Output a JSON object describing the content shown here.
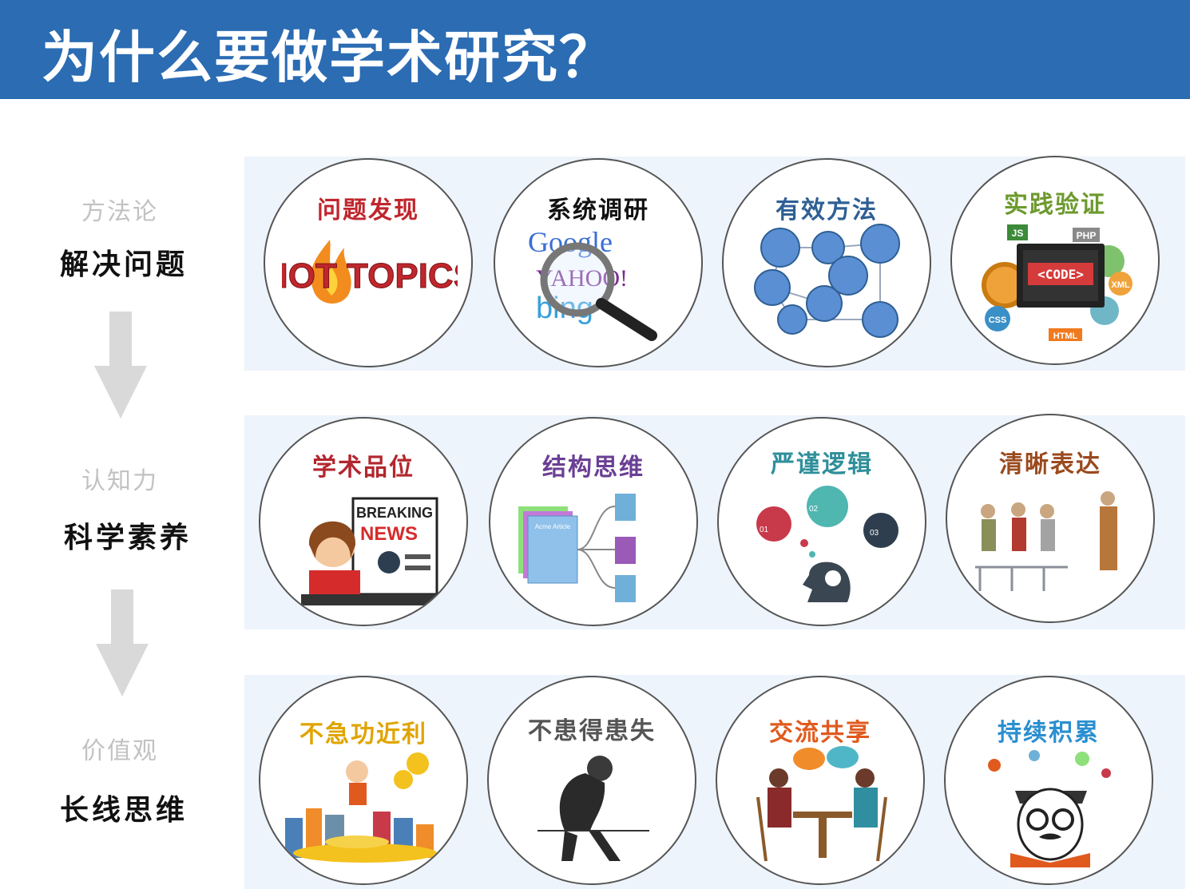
{
  "header": {
    "title": "为什么要做学术研究？"
  },
  "rows": [
    {
      "category": "方法论",
      "label": "解决问题",
      "items": [
        {
          "title": "问题发现",
          "icon": "hot-topics-icon",
          "color": "#c0262d",
          "art_text": "HOT TOPICS"
        },
        {
          "title": "系统调研",
          "icon": "search-engines-icon",
          "color": "#111111",
          "art_google": "Google",
          "art_yahoo": "YAHOO!",
          "art_bing": "bing"
        },
        {
          "title": "有效方法",
          "icon": "network-diagram-icon",
          "color": "#2f5f94"
        },
        {
          "title": "实践验证",
          "icon": "code-monitor-icon",
          "color": "#6d9a2e",
          "art_code": "<CODE>",
          "art_js": "JS",
          "art_php": "PHP",
          "art_xml": "XML",
          "art_css": "CSS",
          "art_html": "HTML"
        }
      ]
    },
    {
      "category": "认知力",
      "label": "科学素养",
      "items": [
        {
          "title": "学术品位",
          "icon": "breaking-news-icon",
          "color": "#b3262e",
          "art_breaking": "BREAKING",
          "art_news": "NEWS"
        },
        {
          "title": "结构思维",
          "icon": "mind-map-icon",
          "color": "#6a3f94",
          "art_article": "Acme Article"
        },
        {
          "title": "严谨逻辑",
          "icon": "brain-logic-icon",
          "color": "#2e8f9a",
          "art_01": "01",
          "art_02": "02",
          "art_03": "03"
        },
        {
          "title": "清晰表达",
          "icon": "presentation-icon",
          "color": "#9a4a1e"
        }
      ]
    },
    {
      "category": "价值观",
      "label": "长线思维",
      "items": [
        {
          "title": "不急功近利",
          "icon": "money-city-icon",
          "color": "#e0a400"
        },
        {
          "title": "不患得患失",
          "icon": "thinking-man-icon",
          "color": "#555555"
        },
        {
          "title": "交流共享",
          "icon": "conversation-icon",
          "color": "#e05a1e"
        },
        {
          "title": "持续积累",
          "icon": "reading-scholar-icon",
          "color": "#2a8fd0"
        }
      ]
    }
  ]
}
